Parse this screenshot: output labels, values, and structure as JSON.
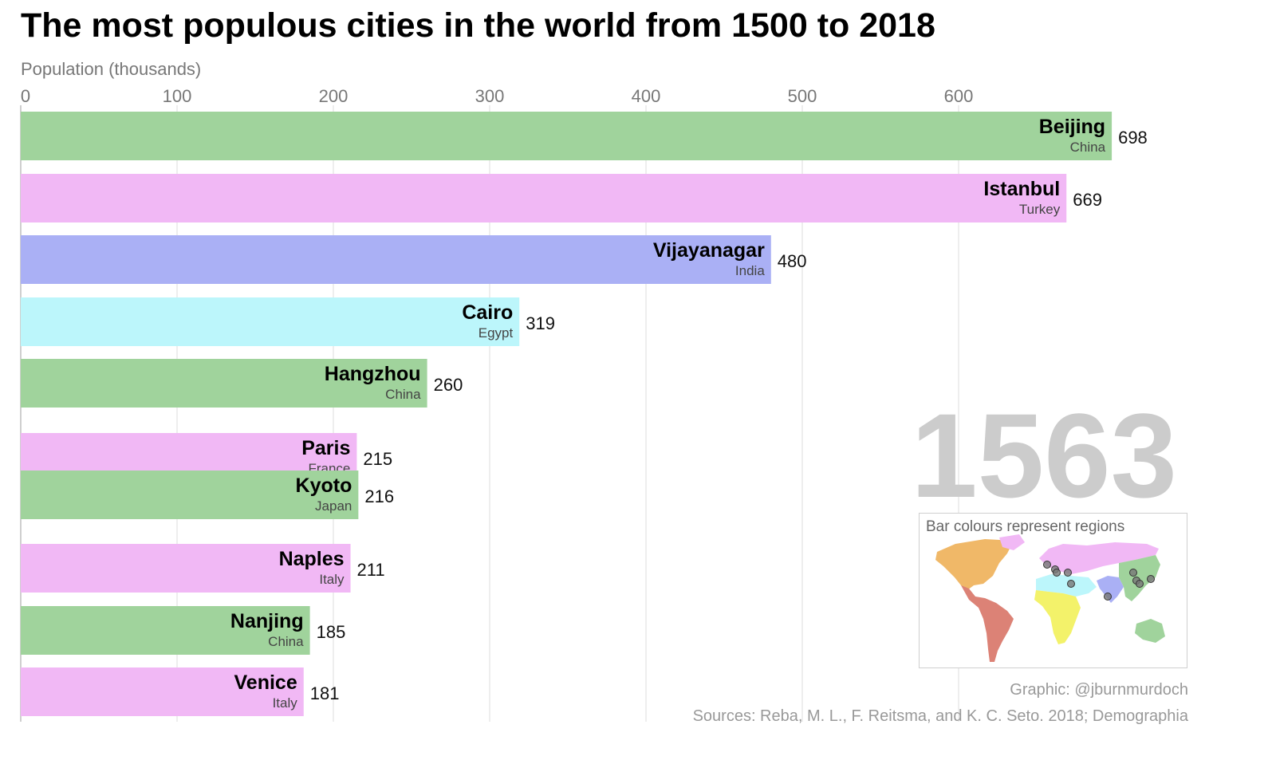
{
  "title": "The most populous cities in the world from 1500 to 2018",
  "chart_data": {
    "type": "bar",
    "orientation": "horizontal",
    "title": "The most populous cities in the world from 1500 to 2018",
    "xlabel": "Population (thousands)",
    "ylabel": "",
    "xlim": [
      0,
      700
    ],
    "xticks": [
      "0",
      "100",
      "200",
      "300",
      "400",
      "500",
      "600"
    ],
    "year": "1563",
    "grid": true,
    "bars": [
      {
        "city": "Beijing",
        "country": "China",
        "value": 698,
        "region": "East Asia"
      },
      {
        "city": "Istanbul",
        "country": "Turkey",
        "value": 669,
        "region": "Europe"
      },
      {
        "city": "Vijayanagar",
        "country": "India",
        "value": 480,
        "region": "South Asia"
      },
      {
        "city": "Cairo",
        "country": "Egypt",
        "value": 319,
        "region": "Middle East & North Africa"
      },
      {
        "city": "Hangzhou",
        "country": "China",
        "value": 260,
        "region": "East Asia"
      },
      {
        "city": "Paris",
        "country": "France",
        "value": 215,
        "region": "Europe"
      },
      {
        "city": "Kyoto",
        "country": "Japan",
        "value": 216,
        "region": "East Asia"
      },
      {
        "city": "Naples",
        "country": "Italy",
        "value": 211,
        "region": "Europe"
      },
      {
        "city": "Nanjing",
        "country": "China",
        "value": 185,
        "region": "East Asia"
      },
      {
        "city": "Venice",
        "country": "Italy",
        "value": 181,
        "region": "Europe"
      }
    ],
    "colors": {
      "East Asia": "#a0d39c",
      "Europe": "#f1b8f5",
      "South Asia": "#aab0f5",
      "Middle East & North Africa": "#bcf6fb",
      "North America": "#f0b868",
      "Latin America": "#dc8276",
      "Sub-Saharan Africa": "#f3f26a"
    }
  },
  "legend": {
    "title": "Bar colours represent regions",
    "regions": [
      "North America",
      "Latin America",
      "Europe",
      "Middle East & North Africa",
      "Sub-Saharan Africa",
      "South Asia",
      "East Asia"
    ]
  },
  "footer": {
    "credit": "Graphic: @jburnmurdoch",
    "sources": "Sources: Reba, M. L., F. Reitsma, and K. C. Seto. 2018; Demographia"
  }
}
